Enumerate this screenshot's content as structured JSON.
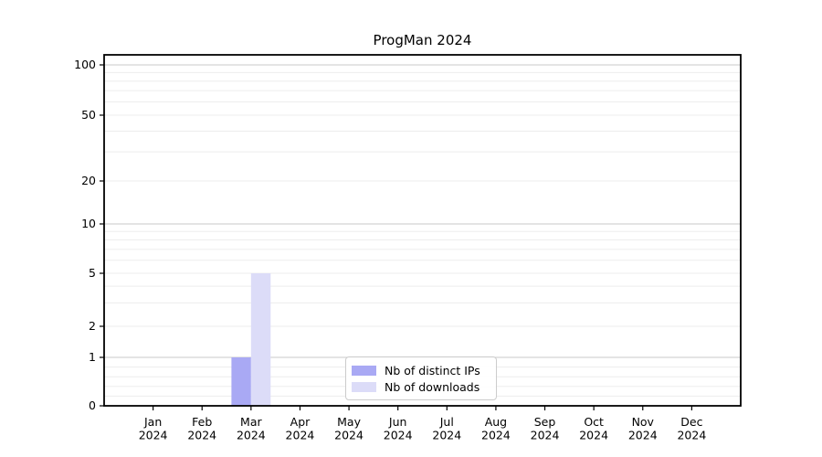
{
  "figure": {
    "background": "#ffffff"
  },
  "chart_data": {
    "type": "bar",
    "title": "ProgMan 2024",
    "categories": [
      "Jan",
      "Feb",
      "Mar",
      "Apr",
      "May",
      "Jun",
      "Jul",
      "Aug",
      "Sep",
      "Oct",
      "Nov",
      "Dec"
    ],
    "category_sublabel": "2024",
    "series": [
      {
        "name": "Nb of distinct IPs",
        "color": "#a9a9f4",
        "values": [
          0,
          0,
          1,
          0,
          0,
          0,
          0,
          0,
          0,
          0,
          0,
          0
        ]
      },
      {
        "name": "Nb of downloads",
        "color": "#dcdcf8",
        "values": [
          0,
          0,
          5,
          0,
          0,
          0,
          0,
          0,
          0,
          0,
          0,
          0
        ]
      }
    ],
    "yticks": [
      0,
      1,
      2,
      5,
      10,
      20,
      50,
      100
    ],
    "minor_grid_values": [
      0.2,
      0.4,
      0.6,
      0.8,
      2,
      3,
      4,
      5,
      6,
      7,
      8,
      9,
      20,
      30,
      40,
      50,
      60,
      70,
      80,
      90
    ],
    "major_grid_values": [
      1,
      10,
      100
    ],
    "ylim": [
      0,
      110
    ],
    "yscale": "symlog",
    "xlabel": "",
    "ylabel": "",
    "grid": "horizontal",
    "legend_position": "lower center",
    "colors": {
      "axis": "#000000",
      "text": "#000000",
      "major_grid": "#c9c9c9",
      "minor_grid": "#ededed",
      "legend_border": "#cccccc"
    }
  },
  "legend": {
    "items": [
      {
        "label": "Nb of distinct IPs",
        "color": "#a9a9f4"
      },
      {
        "label": "Nb of downloads",
        "color": "#dcdcf8"
      }
    ]
  }
}
